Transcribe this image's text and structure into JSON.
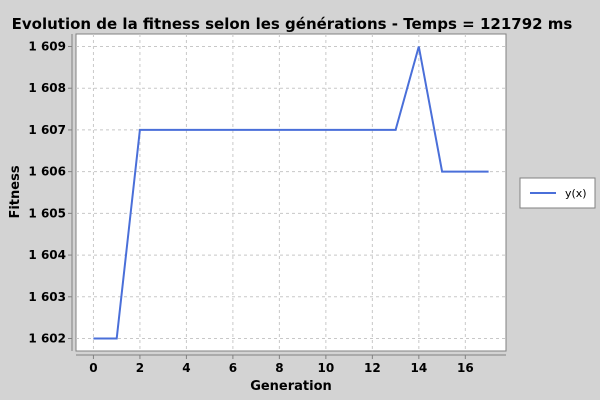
{
  "chart_data": {
    "type": "line",
    "title": "Evolution de la fitness selon les générations - Temps = 121792 ms",
    "xlabel": "Generation",
    "ylabel": "Fitness",
    "xlim": [
      -0.75,
      17.75
    ],
    "ylim": [
      1601.7,
      1609.3
    ],
    "xticks": [
      0,
      2,
      4,
      6,
      8,
      10,
      12,
      14,
      16
    ],
    "xtick_labels": [
      "0",
      "2",
      "4",
      "6",
      "8",
      "10",
      "12",
      "14",
      "16"
    ],
    "yticks": [
      1602,
      1603,
      1604,
      1605,
      1606,
      1607,
      1608,
      1609
    ],
    "ytick_labels": [
      "1 602",
      "1 603",
      "1 604",
      "1 605",
      "1 606",
      "1 607",
      "1 608",
      "1 609"
    ],
    "grid": true,
    "legend_position": "right",
    "series": [
      {
        "name": "y(x)",
        "color": "#4a6fd9",
        "x": [
          0,
          1,
          2,
          3,
          4,
          5,
          6,
          7,
          8,
          9,
          10,
          11,
          12,
          13,
          14,
          15,
          16,
          17
        ],
        "y": [
          1602,
          1602,
          1607,
          1607,
          1607,
          1607,
          1607,
          1607,
          1607,
          1607,
          1607,
          1607,
          1607,
          1607,
          1609,
          1606,
          1606,
          1606
        ]
      }
    ]
  }
}
